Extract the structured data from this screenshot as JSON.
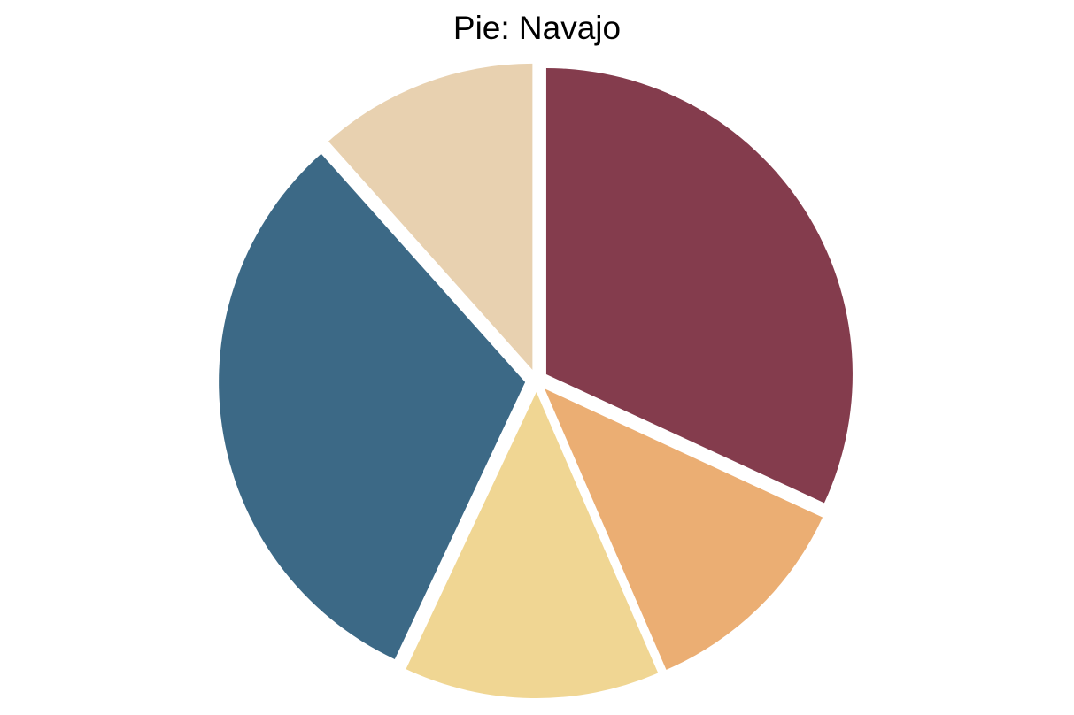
{
  "chart_data": {
    "type": "pie",
    "title": "Pie: Navajo",
    "start_angle_deg": 90,
    "direction": "clockwise",
    "slices": [
      {
        "value": 31.9,
        "color": "#843C4D"
      },
      {
        "value": 11.6,
        "color": "#EBAE73"
      },
      {
        "value": 13.5,
        "color": "#F0D693"
      },
      {
        "value": 31.4,
        "color": "#3C6986"
      },
      {
        "value": 11.6,
        "color": "#E8D1B0"
      }
    ]
  }
}
